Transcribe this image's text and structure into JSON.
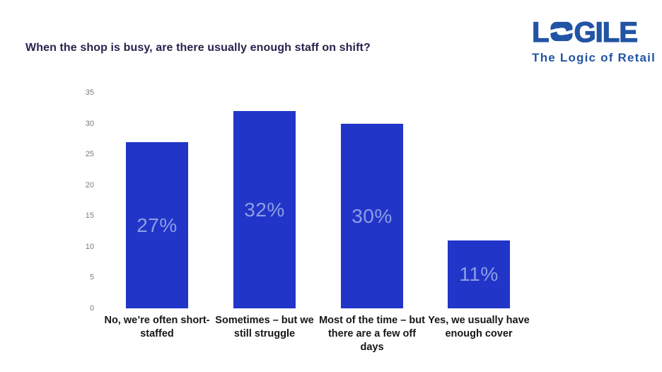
{
  "title": "When the shop is busy, are there usually enough staff on shift?",
  "logo": {
    "brand": "LOGILE",
    "brand_prefix": "L",
    "brand_suffix": "GILE",
    "tagline": "The Logic of Retail"
  },
  "colors": {
    "bar": "#2135c8",
    "bar_label": "#8d9ee4",
    "logo_blue": "#2254a4",
    "title_text": "#28234e",
    "tick_text": "#7b7b7b",
    "category_text": "#161616"
  },
  "chart_data": {
    "type": "bar",
    "title": "When the shop is busy, are there usually enough staff on shift?",
    "categories": [
      "No, we’re often short-staffed",
      "Sometimes – but we still struggle",
      "Most of the time – but there are a few off days",
      "Yes, we usually have enough cover"
    ],
    "values": [
      27,
      32,
      30,
      11
    ],
    "data_labels": [
      "27%",
      "32%",
      "30%",
      "11%"
    ],
    "xlabel": "",
    "ylabel": "",
    "ylim": [
      0,
      35
    ],
    "yticks": [
      0,
      5,
      10,
      15,
      20,
      25,
      30,
      35
    ],
    "grid": false,
    "legend": false
  }
}
